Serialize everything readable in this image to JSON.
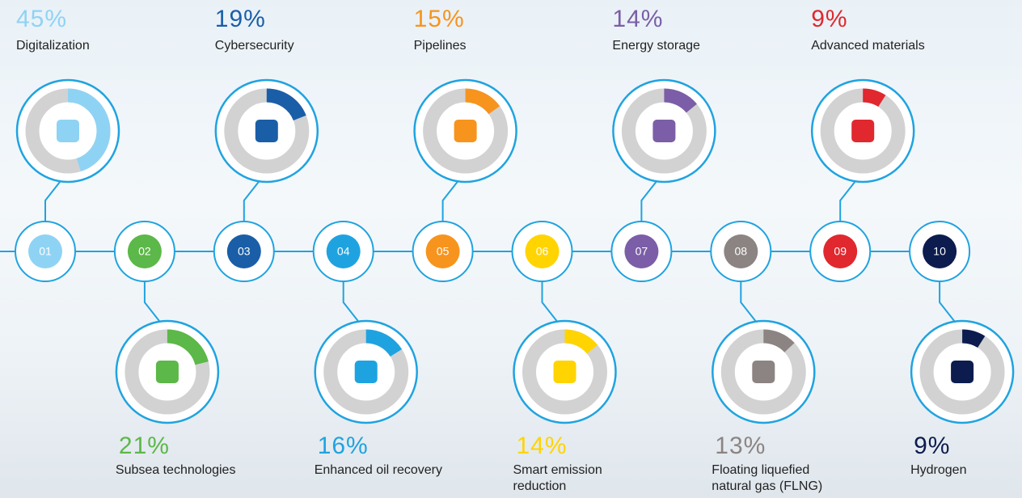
{
  "chart_data": {
    "type": "donut-timeline",
    "categories": [
      "Digitalization",
      "Subsea technologies",
      "Cybersecurity",
      "Enhanced oil recovery",
      "Pipelines",
      "Smart emission reduction",
      "Energy storage",
      "Floating liquefied natural gas (FLNG)",
      "Advanced materials",
      "Hydrogen"
    ],
    "step_labels": [
      "01",
      "02",
      "03",
      "04",
      "05",
      "06",
      "07",
      "08",
      "09",
      "10"
    ],
    "values": [
      45,
      21,
      19,
      16,
      15,
      14,
      14,
      13,
      9,
      9
    ],
    "value_labels": [
      "45%",
      "21%",
      "19%",
      "16%",
      "15%",
      "14%",
      "14%",
      "13%",
      "9%",
      "9%"
    ],
    "colors": [
      "#8fd3f4",
      "#5cb848",
      "#1a5ea8",
      "#1fa3e0",
      "#f7941d",
      "#ffd400",
      "#7b5ea7",
      "#8c8482",
      "#e0282e",
      "#0c1c4e"
    ]
  }
}
